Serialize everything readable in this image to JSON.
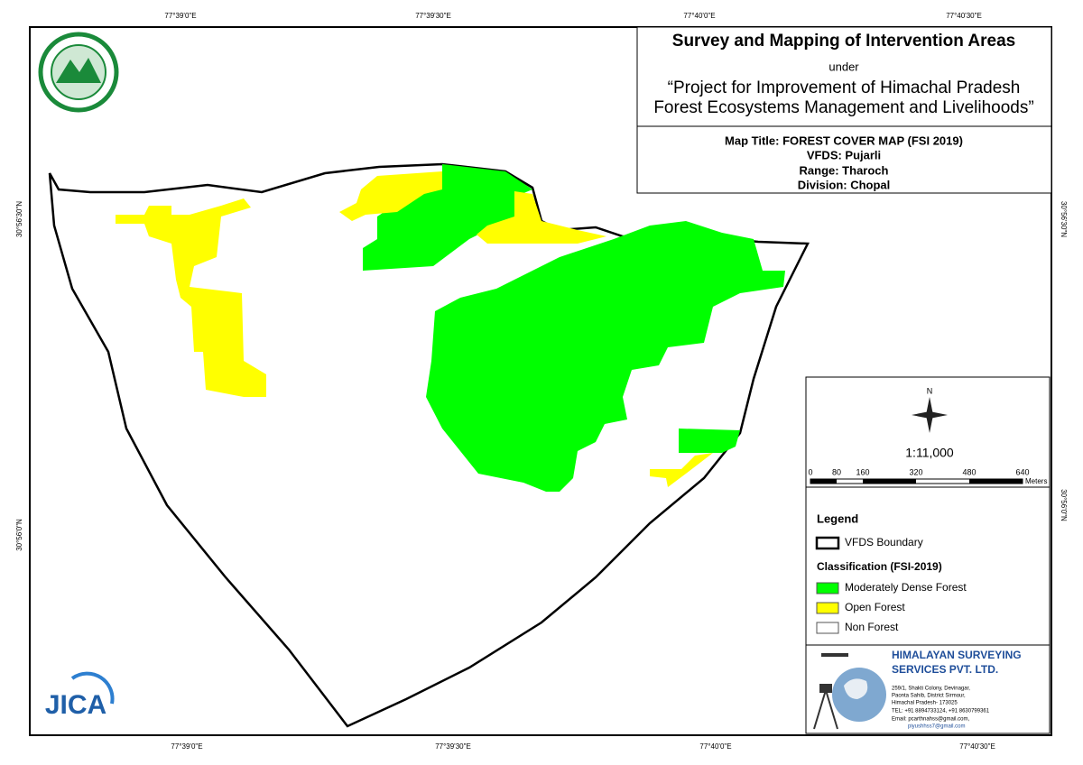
{
  "grid_labels": {
    "top": [
      "77°39'0\"E",
      "77°39'30\"E",
      "77°40'0\"E",
      "77°40'30\"E"
    ],
    "bottom": [
      "77°39'0\"E",
      "77°39'30\"E",
      "77°40'0\"E",
      "77°40'30\"E"
    ],
    "left": [
      "30°56'30\"N",
      "30°56'0\"N"
    ],
    "right": [
      "30°56'30\"N",
      "30°56'0\"N"
    ]
  },
  "header": {
    "title": "Survey and Mapping of Intervention Areas",
    "under": "under",
    "project": [
      "“Project for Improvement of Himachal Pradesh",
      "Forest Ecosystems Management and Livelihoods”"
    ]
  },
  "map_info": [
    "Map Title: FOREST COVER MAP (FSI 2019)",
    "VFDS: Pujarli",
    "Range: Tharoch",
    "Division: Chopal"
  ],
  "north": "N",
  "scale": "1:11,000",
  "scale_bar": {
    "ticks": [
      "0",
      "80",
      "160",
      "320",
      "480",
      "640"
    ],
    "unit": "Meters"
  },
  "legend": {
    "title": "Legend",
    "boundary": "VFDS Boundary",
    "classification": "Classification (FSI-2019)",
    "items": [
      {
        "label": "Moderately Dense Forest",
        "color": "#00ff00"
      },
      {
        "label": "Open Forest",
        "color": "#ffff00"
      },
      {
        "label": "Non Forest",
        "color": "#ffffff"
      }
    ]
  },
  "company": {
    "name": [
      "HIMALAYAN SURVEYING",
      "SERVICES PVT. LTD."
    ],
    "address": [
      "259/1, Shakti Colony, Devinagar,",
      "Paonta Sahib, District Sirmour,",
      "Himachal Pradesh- 173025",
      "TEL: +91 8894733124, +91 8630799361",
      "Email: pcarthnahss@gmail.com,",
      "piyushhss7@gmail.com"
    ]
  },
  "logo": "JICA"
}
